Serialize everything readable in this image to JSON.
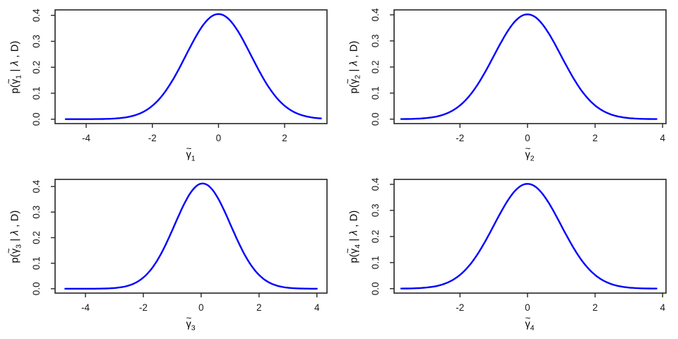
{
  "figure": {
    "background": "#ffffff",
    "curve_color": "#0000ff",
    "axis_color": "#262626",
    "tick_text_color": "#1a1a1a",
    "tick_font_size": 13.5,
    "description": "2x2 grid of posterior density plots p(gamma_i | lambda, D), blue gaussian-shaped curves"
  },
  "chart_data": [
    {
      "type": "line",
      "panel": "top-left",
      "title": "",
      "xlabel": "γ̃₁",
      "ylabel": "p(γ̃₁ | λ , D)",
      "ylabel_pre": "p(",
      "label_sym": "γ",
      "label_tilde": "~",
      "label_sub": "1",
      "ylabel_bar": " | ",
      "ylabel_lambda": "λ",
      "ylabel_post": " , D)",
      "x_ticks": [
        -4,
        -2,
        0,
        2
      ],
      "y_ticks": [
        "0.0",
        "0.1",
        "0.2",
        "0.3",
        "0.4"
      ],
      "xlim": [
        -4.94,
        3.28
      ],
      "ylim": [
        -0.017,
        0.421
      ],
      "grid": false,
      "legend": false,
      "curve": {
        "shape": "gaussian",
        "mean": 0,
        "sd": 0.985,
        "peak": 0.405,
        "x_start": -4.62,
        "x_end": 3.1
      }
    },
    {
      "type": "line",
      "panel": "top-right",
      "title": "",
      "xlabel": "γ̃₂",
      "ylabel": "p(γ̃₂ | λ , D)",
      "ylabel_pre": "p(",
      "label_sym": "γ",
      "label_tilde": "~",
      "label_sub": "2",
      "ylabel_bar": " | ",
      "ylabel_lambda": "λ",
      "ylabel_post": " , D)",
      "x_ticks": [
        -2,
        0,
        2,
        4
      ],
      "y_ticks": [
        "0.0",
        "0.1",
        "0.2",
        "0.3",
        "0.4"
      ],
      "xlim": [
        -3.95,
        4.1
      ],
      "ylim": [
        -0.017,
        0.419
      ],
      "grid": false,
      "legend": false,
      "curve": {
        "shape": "gaussian",
        "mean": 0,
        "sd": 0.992,
        "peak": 0.402,
        "x_start": -3.74,
        "x_end": 3.82
      }
    },
    {
      "type": "line",
      "panel": "bottom-left",
      "title": "",
      "xlabel": "γ̃₃",
      "ylabel": "p(γ̃₃ | λ , D)",
      "ylabel_pre": "p(",
      "label_sym": "γ",
      "label_tilde": "~",
      "label_sub": "3",
      "ylabel_bar": " | ",
      "ylabel_lambda": "λ",
      "ylabel_post": " , D)",
      "x_ticks": [
        -4,
        -2,
        0,
        2,
        4
      ],
      "y_ticks": [
        "0.0",
        "0.1",
        "0.2",
        "0.3",
        "0.4"
      ],
      "xlim": [
        -5.05,
        4.35
      ],
      "ylim": [
        -0.017,
        0.428
      ],
      "grid": false,
      "legend": false,
      "curve": {
        "shape": "gaussian",
        "mean": 0.05,
        "sd": 0.968,
        "peak": 0.412,
        "x_start": -4.7,
        "x_end": 4.0
      }
    },
    {
      "type": "line",
      "panel": "bottom-right",
      "title": "",
      "xlabel": "γ̃₄",
      "ylabel": "p(γ̃₄ | λ , D)",
      "ylabel_pre": "p(",
      "label_sym": "γ",
      "label_tilde": "~",
      "label_sub": "4",
      "ylabel_bar": " | ",
      "ylabel_lambda": "λ",
      "ylabel_post": " , D)",
      "x_ticks": [
        -2,
        0,
        2,
        4
      ],
      "y_ticks": [
        "0.0",
        "0.1",
        "0.2",
        "0.3",
        "0.4"
      ],
      "xlim": [
        -3.95,
        4.1
      ],
      "ylim": [
        -0.017,
        0.419
      ],
      "grid": false,
      "legend": false,
      "curve": {
        "shape": "gaussian",
        "mean": 0,
        "sd": 0.992,
        "peak": 0.402,
        "x_start": -3.74,
        "x_end": 3.82
      }
    }
  ]
}
